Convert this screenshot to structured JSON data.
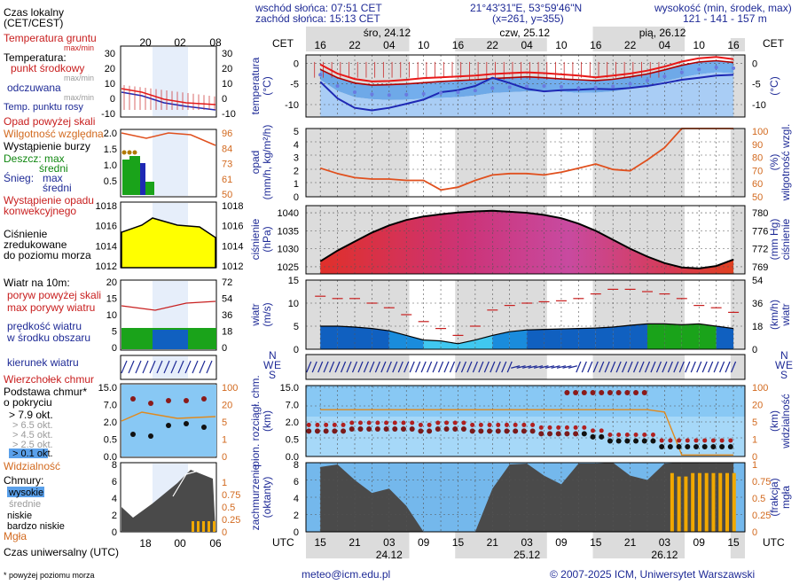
{
  "header": {
    "sunrise": "wschód słońca: 07:51 CET",
    "sunset": "zachód słońca: 15:13 CET",
    "coords": "21°43'31\"E, 53°59'46\"N",
    "grid": "(x=261, y=355)",
    "elev_title": "wysokość (min, środek, max)",
    "elev_values": "121 - 141 - 157 m",
    "days_top": [
      "śro, 24.12",
      "czw, 25.12",
      "pią, 26.12"
    ],
    "days_bottom": [
      "24.12",
      "25.12",
      "26.12"
    ],
    "cet": "CET",
    "utc": "UTC",
    "cet_hours": [
      "16",
      "22",
      "04",
      "10",
      "16",
      "22",
      "04",
      "10",
      "16",
      "22",
      "04",
      "10",
      "16"
    ],
    "utc_hours": [
      "15",
      "21",
      "03",
      "09",
      "15",
      "21",
      "03",
      "09",
      "15",
      "21",
      "03",
      "09",
      "15"
    ]
  },
  "legend": {
    "local_time": "Czas lokalny",
    "local_time_sub": "(CET/CEST)",
    "ground_temp": "Temperatura gruntu",
    "ground_temp_sub": "max/min",
    "temperature": "Temperatura:",
    "midpoint": "punkt środkowy",
    "maxmin1": "max/min",
    "perceived": "odczuwana",
    "maxmin2": "max/min",
    "dewpoint": "Temp. punktu rosy",
    "precip_above": "Opad powyżej skali",
    "humidity": "Wilgotność względna",
    "storm": "Wystąpienie burzy",
    "rain": "Deszcz: max",
    "rain_mid": "średni",
    "snow": "Śnieg:",
    "snow_max": "max",
    "snow_mid": "średni",
    "conv": "Wystąpienie opadu",
    "conv2": "konwekcyjnego",
    "pressure": "Ciśnienie",
    "pressure2": "zredukowane",
    "pressure3": "do poziomu morza",
    "wind10": "Wiatr na 10m:",
    "gust_above": "poryw powyżej skali",
    "gust_max": "max porywy wiatru",
    "wind_speed": "prędkość wiatru",
    "wind_area": "w środku obszaru",
    "wind_dir": "kierunek wiatru",
    "cloud_top": "Wierzchołek chmur",
    "cloud_base": "Podstawa chmur*",
    "cloud_base2": "o pokryciu",
    "okt79": "> 7.9 okt.",
    "okt65": "> 6.5 okt.",
    "okt45": "> 4.5 okt.",
    "okt25": "> 2.5 okt.",
    "okt01": "> 0.1 okt.",
    "visibility": "Widzialność",
    "clouds": "Chmury:",
    "high": "wysokie",
    "mid": "średnie",
    "low": "niskie",
    "vlow": "bardzo niskie",
    "fog": "Mgła",
    "utc_time": "Czas uniwersalny (UTC)",
    "footnote": "* powyżej poziomu morza"
  },
  "mini_axes": {
    "top_hours": [
      "20",
      "02",
      "08"
    ],
    "bottom_hours": [
      "18",
      "00",
      "06"
    ],
    "temp": [
      "30",
      "20",
      "10",
      "0",
      "-10"
    ],
    "temp_r": [
      "30",
      "20",
      "10",
      "0",
      "-10"
    ],
    "precip": [
      "2.0",
      "1.5",
      "1.0",
      "0.5"
    ],
    "hum": [
      "96",
      "84",
      "73",
      "61",
      "50"
    ],
    "press": [
      "1018",
      "1016",
      "1014",
      "1012"
    ],
    "wind": [
      "20",
      "15",
      "10",
      "5",
      "0"
    ],
    "wind_r": [
      "72",
      "54",
      "36",
      "18",
      "0"
    ],
    "cloudh": [
      "15.0",
      "7.0",
      "2.0",
      "0.5",
      "0.0"
    ],
    "vis": [
      "100",
      "20",
      "5",
      "1",
      "0"
    ],
    "okta": [
      "8",
      "6",
      "4",
      "2",
      "0"
    ],
    "fog": [
      "1",
      "0.75",
      "0.5",
      "0.25",
      "0"
    ]
  },
  "panels": {
    "temp": {
      "label": "temperatura",
      "unit": "(°C)",
      "left_ticks": [
        "0",
        "-5",
        "-10"
      ],
      "right_ticks": [
        "0",
        "-5",
        "-10"
      ]
    },
    "precip": {
      "label": "opad",
      "unit": "(mm/h, kg/m²/h)",
      "left_ticks": [
        "5",
        "4",
        "3",
        "2",
        "1",
        "0"
      ],
      "right_label": "wilgotność wzgl.",
      "right_unit": "(%)",
      "right_ticks": [
        "100",
        "90",
        "80",
        "70",
        "60",
        "50"
      ]
    },
    "press": {
      "label": "ciśnienie",
      "unit": "(hPa)",
      "left_ticks": [
        "1040",
        "1035",
        "1030",
        "1025"
      ],
      "right_label": "ciśnienie",
      "right_unit": "(mm Hg)",
      "right_ticks": [
        "780",
        "776",
        "772",
        "769"
      ]
    },
    "wind": {
      "label": "wiatr",
      "unit": "(m/s)",
      "left_ticks": [
        "15",
        "10",
        "5",
        "0"
      ],
      "right_label": "wiatr",
      "right_unit": "(km/h)",
      "right_ticks": [
        "54",
        "36",
        "18",
        "0"
      ]
    },
    "dir": {
      "n": "N",
      "w": "W",
      "e": "E",
      "s": "S"
    },
    "cloudh": {
      "label": "pion. rozciągł. chm.",
      "unit": "(km)",
      "left_ticks": [
        "15.0",
        "7.0",
        "2.0",
        "0.5",
        "0.0"
      ],
      "right_label": "widzialność",
      "right_unit": "(km)",
      "right_ticks": [
        "100",
        "20",
        "5",
        "1",
        "0"
      ]
    },
    "cover": {
      "label": "zachmurzenie",
      "unit": "(oktanty)",
      "left_ticks": [
        "8",
        "6",
        "4",
        "2",
        "0"
      ],
      "right_label": "mgła",
      "right_unit": "(frakcja)",
      "right_ticks": [
        "1",
        "0.75",
        "0.5",
        "0.25",
        "0"
      ]
    }
  },
  "chart_data": [
    {
      "type": "line",
      "title": "temperatura",
      "x": [
        15,
        18,
        21,
        24,
        27,
        30,
        33,
        36,
        39,
        42,
        45,
        48,
        51,
        54,
        57,
        60,
        63,
        66,
        69,
        72,
        75,
        78,
        81,
        84,
        87
      ],
      "series": [
        {
          "name": "temperatura max",
          "values": [
            -0.3,
            -2.5,
            -3.8,
            -4.4,
            -4.3,
            -4.0,
            -3.6,
            -3.4,
            -3.2,
            -3.0,
            -2.6,
            -2.4,
            -2.2,
            -2.4,
            -2.7,
            -3.0,
            -3.4,
            -3.0,
            -2.5,
            -1.8,
            -0.8,
            0.4,
            1.2,
            1.5,
            1.0
          ]
        },
        {
          "name": "temperatura środek",
          "values": [
            -1.5,
            -3.5,
            -4.8,
            -5.3,
            -5.2,
            -5.0,
            -4.7,
            -4.4,
            -4.2,
            -4.0,
            -3.7,
            -3.5,
            -3.3,
            -3.5,
            -3.8,
            -4.0,
            -4.2,
            -3.9,
            -3.3,
            -2.6,
            -1.6,
            -0.5,
            0.3,
            0.6,
            0.2
          ]
        },
        {
          "name": "odczuwana",
          "values": [
            -4.5,
            -8.5,
            -10.8,
            -11.4,
            -10.8,
            -9.8,
            -8.8,
            -7.0,
            -6.5,
            -5.5,
            -3.5,
            -4.8,
            -6.2,
            -6.8,
            -6.5,
            -6.4,
            -6.2,
            -6.3,
            -6.0,
            -5.5,
            -4.8,
            -4.0,
            -3.5,
            -3.0,
            -2.8
          ]
        },
        {
          "name": "temp. punktu rosy",
          "values": [
            -2.8,
            -5.5,
            -7.0,
            -7.5,
            -7.7,
            -7.6,
            -7.4,
            -7.2,
            -7.0,
            -6.6,
            -6.0,
            -5.8,
            -5.6,
            -5.5,
            -5.7,
            -6.0,
            -5.9,
            -5.6,
            -5.0,
            -4.2,
            -3.2,
            -2.2,
            -1.5,
            -1.0,
            -1.2
          ]
        }
      ],
      "ylim": [
        -13,
        2
      ]
    },
    {
      "type": "line",
      "title": "wilgotność wzgl.",
      "x": [
        15,
        18,
        21,
        24,
        27,
        30,
        33,
        36,
        39,
        42,
        45,
        48,
        51,
        54,
        57,
        60,
        63,
        66,
        69,
        72,
        75,
        78,
        81,
        84,
        87
      ],
      "series": [
        {
          "name": "wilgotność względna (%)",
          "values": [
            71,
            67,
            64,
            63,
            63,
            62,
            62,
            55,
            57,
            62,
            66,
            67,
            67,
            66,
            68,
            71,
            74,
            70,
            69,
            77,
            86,
            100,
            100,
            100,
            100
          ]
        }
      ],
      "ylim": [
        50,
        100
      ],
      "y2_precip_mm_h": [
        0,
        0,
        0,
        0,
        0,
        0,
        0,
        0,
        0,
        0,
        0,
        0,
        0,
        0,
        0,
        0,
        0,
        0,
        0,
        0,
        0,
        0,
        0,
        0,
        0
      ]
    },
    {
      "type": "area",
      "title": "ciśnienie (hPa)",
      "x": [
        15,
        18,
        21,
        24,
        27,
        30,
        33,
        36,
        39,
        42,
        45,
        48,
        51,
        54,
        57,
        60,
        63,
        66,
        69,
        72,
        75,
        78,
        81,
        84,
        87
      ],
      "values": [
        1026.5,
        1029.5,
        1032,
        1034.5,
        1036.5,
        1038,
        1039,
        1039.6,
        1040.1,
        1040.4,
        1040.6,
        1040.3,
        1040.0,
        1039.4,
        1038.5,
        1037.0,
        1035.0,
        1032.5,
        1030.0,
        1027.8,
        1026.0,
        1024.8,
        1024.5,
        1025.2,
        1027.0
      ],
      "ylim": [
        1023,
        1042
      ]
    },
    {
      "type": "area",
      "title": "wiatr (m/s)",
      "x": [
        15,
        18,
        21,
        24,
        27,
        30,
        33,
        36,
        39,
        42,
        45,
        48,
        51,
        54,
        57,
        60,
        63,
        66,
        69,
        72,
        75,
        78,
        81,
        84,
        87
      ],
      "series": [
        {
          "name": "prędkość wiatru",
          "values": [
            5.0,
            5.0,
            4.8,
            4.5,
            4.0,
            3.0,
            2.0,
            1.8,
            1.2,
            2.0,
            3.0,
            3.8,
            4.2,
            4.3,
            4.4,
            4.5,
            4.6,
            4.8,
            5.2,
            5.5,
            5.5,
            5.3,
            5.5,
            5.0,
            4.5
          ]
        },
        {
          "name": "max porywy wiatru",
          "values": [
            11.5,
            11.0,
            11.0,
            10.0,
            9.0,
            7.5,
            6.0,
            4.5,
            3.0,
            5.0,
            8.5,
            9.5,
            10.0,
            10.3,
            10.5,
            11.0,
            12.0,
            13.0,
            13.0,
            12.5,
            12.0,
            11.0,
            9.5,
            9.0,
            8.0
          ]
        }
      ],
      "ylim": [
        0,
        15
      ]
    },
    {
      "type": "scatter",
      "title": "pion. rozciągł. chm. / widzialność",
      "x": [
        15,
        18,
        21,
        24,
        27,
        30,
        33,
        36,
        39,
        42,
        45,
        48,
        51,
        54,
        57,
        60,
        63,
        66,
        69,
        72,
        75,
        78,
        81,
        84,
        87
      ],
      "series": [
        {
          "name": "podstawa chmur (km)",
          "values": [
            0.5,
            0.5,
            0.6,
            0.6,
            0.6,
            0.6,
            0.5,
            0.6,
            0.6,
            0.5,
            0.5,
            0.5,
            0.5,
            0.4,
            0.4,
            0.4,
            0.3,
            0.2,
            0.2,
            0.2,
            0.1,
            0.1,
            0.1,
            0.1,
            0.1
          ]
        },
        {
          "name": "wierzchołek chmur (km)",
          "values": [
            0.7,
            0.8,
            0.8,
            0.8,
            0.8,
            0.8,
            0.7,
            0.8,
            0.8,
            0.7,
            0.8,
            0.8,
            0.8,
            0.9,
            0.9,
            4.0,
            4.5,
            4.8,
            4.5,
            0.7,
            0.6,
            4.5,
            2.0,
            1.2,
            0.8
          ]
        },
        {
          "name": "widzialność (km)",
          "values": [
            20,
            20,
            20,
            20,
            20,
            20,
            20,
            20,
            20,
            20,
            20,
            20,
            20,
            20,
            20,
            20,
            20,
            20,
            20,
            20,
            17,
            0.1,
            0.1,
            0.1,
            0.1
          ]
        }
      ]
    },
    {
      "type": "area",
      "title": "zachmurzenie (oktanty) / mgła",
      "x": [
        15,
        18,
        21,
        24,
        27,
        30,
        33,
        36,
        39,
        42,
        45,
        48,
        51,
        54,
        57,
        60,
        63,
        66,
        69,
        72,
        75,
        78,
        81,
        84,
        87
      ],
      "series": [
        {
          "name": "chmury niskie",
          "values": [
            7.5,
            7.8,
            6.0,
            4.5,
            5.0,
            3.0,
            0.0,
            0.0,
            0.0,
            0.0,
            5.0,
            7.8,
            7.9,
            6.5,
            5.5,
            7.9,
            7.9,
            8.0,
            6.5,
            6.0,
            7.9,
            8.0,
            8.0,
            8.0,
            8.0
          ]
        },
        {
          "name": "mgła (frakcja)",
          "values": [
            0,
            0,
            0,
            0,
            0,
            0,
            0,
            0,
            0,
            0,
            0,
            0,
            0,
            0,
            0,
            0,
            0,
            0,
            0,
            0,
            0,
            0.8,
            0.85,
            0.85,
            0.85
          ]
        }
      ],
      "ylim": [
        0,
        8
      ]
    }
  ],
  "footer": {
    "email": "meteo@icm.edu.pl",
    "copyright": "© 2007-2025 ICM, Uniwersytet Warszawski"
  }
}
